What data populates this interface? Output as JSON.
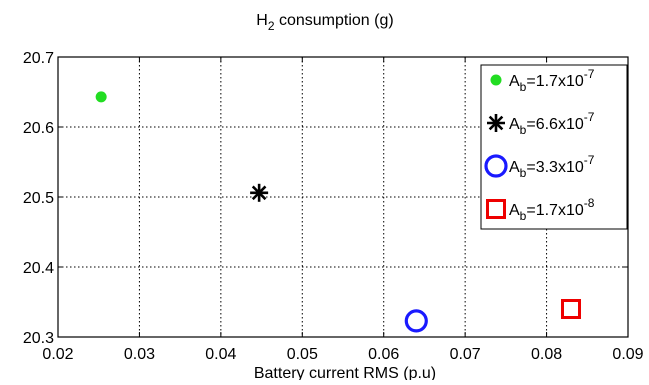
{
  "chart_data": {
    "type": "scatter",
    "title": {
      "main": "H",
      "sub": "2",
      "rest": " consumption (g)"
    },
    "xlabel": "Battery current RMS (p.u)",
    "ylabel": "",
    "xlim": [
      0.02,
      0.09
    ],
    "ylim": [
      20.3,
      20.7
    ],
    "xticks": [
      0.02,
      0.03,
      0.04,
      0.05,
      0.06,
      0.07,
      0.08,
      0.09
    ],
    "xtick_labels": [
      "0.02",
      "0.03",
      "0.04",
      "0.05",
      "0.06",
      "0.07",
      "0.08",
      "0.09"
    ],
    "yticks": [
      20.3,
      20.4,
      20.5,
      20.6,
      20.7
    ],
    "ytick_labels": [
      "20.3",
      "20.4",
      "20.5",
      "20.6",
      "20.7"
    ],
    "grid": true,
    "legend_position": "top-right",
    "series": [
      {
        "name": "A_b=1.7x10^-7",
        "legend": {
          "pre": "A",
          "sub": "b",
          "mid": "=1.7x10",
          "sup": "-7"
        },
        "marker": "dot",
        "color": "#22dd22",
        "x": [
          0.0253
        ],
        "y": [
          20.643
        ]
      },
      {
        "name": "A_b=6.6x10^-7",
        "legend": {
          "pre": "A",
          "sub": "b",
          "mid": "=6.6x10",
          "sup": "-7"
        },
        "marker": "asterisk",
        "color": "#000000",
        "x": [
          0.0447
        ],
        "y": [
          20.506
        ]
      },
      {
        "name": "A_b=3.3x10^-7",
        "legend": {
          "pre": "A",
          "sub": "b",
          "mid": "=3.3x10",
          "sup": "-7"
        },
        "marker": "circle",
        "color": "#1a1aff",
        "x": [
          0.064
        ],
        "y": [
          20.323
        ]
      },
      {
        "name": "A_b=1.7x10^-8",
        "legend": {
          "pre": "A",
          "sub": "b",
          "mid": "=1.7x10",
          "sup": "-8"
        },
        "marker": "square",
        "color": "#ee0000",
        "x": [
          0.083
        ],
        "y": [
          20.34
        ]
      }
    ]
  }
}
